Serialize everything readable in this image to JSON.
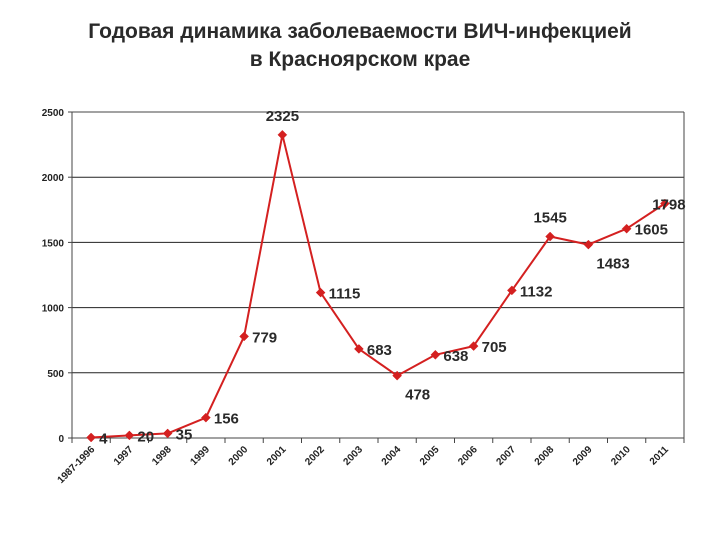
{
  "title_line1": "Годовая динамика заболеваемости ВИЧ-инфекцией",
  "title_line2": "в Красноярском крае",
  "colors": {
    "series": "#d42020",
    "grid": "#222222",
    "axis": "#444444"
  },
  "chart_data": {
    "type": "line",
    "categories": [
      "1987-1996",
      "1997",
      "1998",
      "1999",
      "2000",
      "2001",
      "2002",
      "2003",
      "2004",
      "2005",
      "2006",
      "2007",
      "2008",
      "2009",
      "2010",
      "2011"
    ],
    "series": [
      {
        "values": [
          4,
          20,
          35,
          156,
          779,
          2325,
          1115,
          683,
          478,
          638,
          705,
          1132,
          1545,
          1483,
          1605,
          1798
        ],
        "labels": [
          "4",
          "20",
          "35",
          "156",
          "779",
          "2325",
          "1115",
          "683",
          "478",
          "638",
          "705",
          "1132",
          "1545",
          "1483",
          "1605",
          "1798"
        ]
      }
    ],
    "yticks": [
      "0",
      "500",
      "1000",
      "1500",
      "2000",
      "2500"
    ],
    "ytick_values": [
      0,
      500,
      1000,
      1500,
      2000,
      2500
    ],
    "ylim": [
      0,
      2500
    ],
    "grid": true,
    "legend": "none",
    "marker": "diamond"
  }
}
